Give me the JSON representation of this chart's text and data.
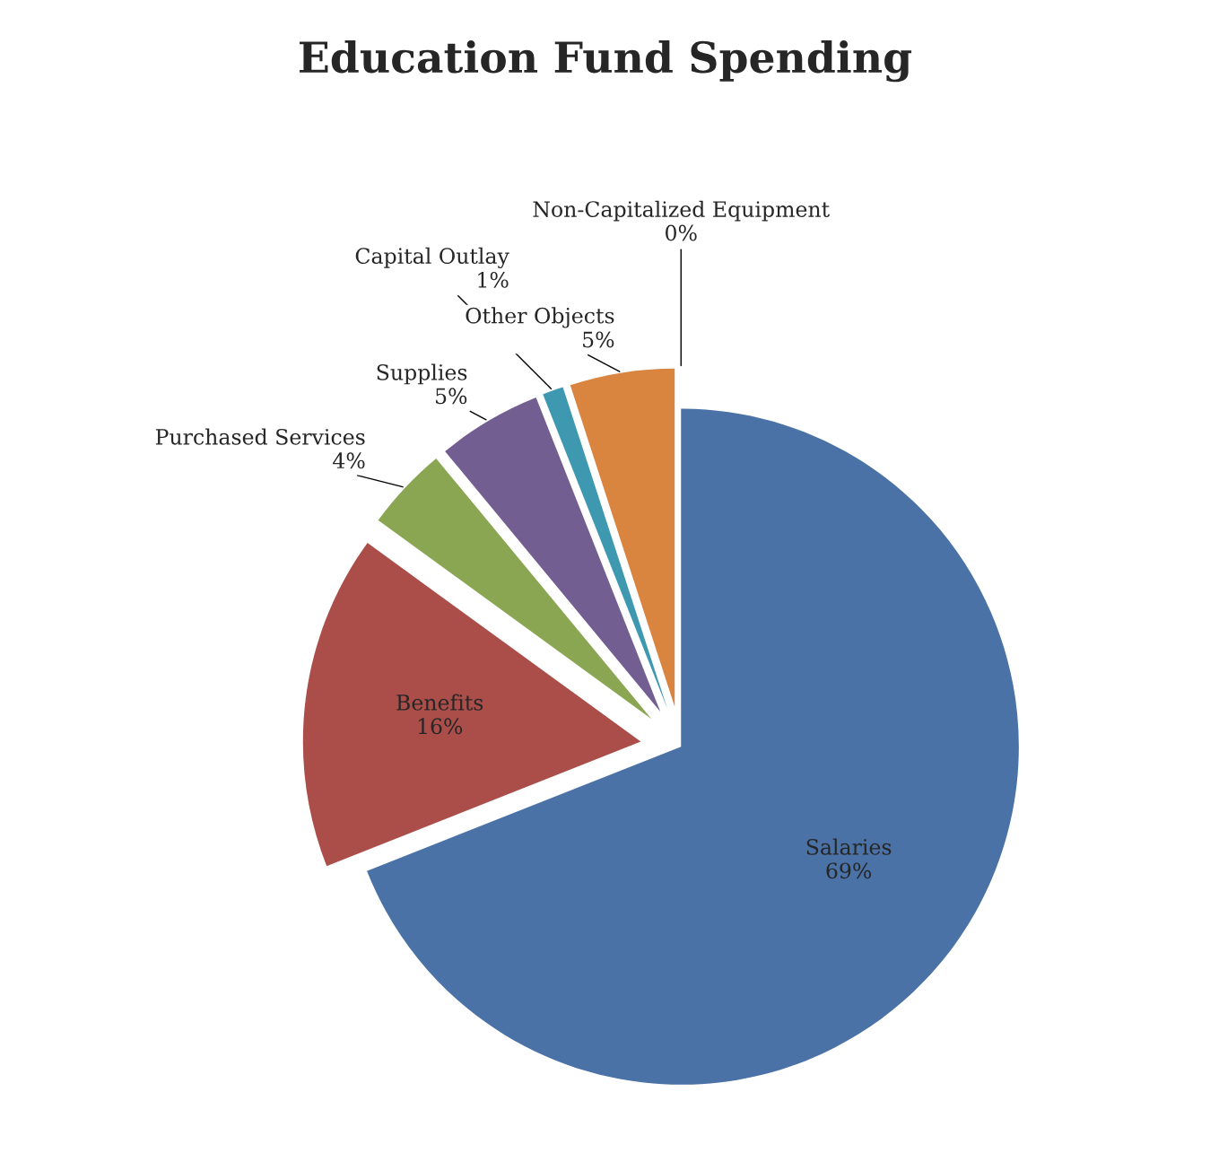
{
  "chart_data": {
    "type": "pie",
    "title": "Education Fund Spending",
    "categories": [
      "Salaries",
      "Benefits",
      "Purchased Services",
      "Supplies",
      "Capital Outlay",
      "Other Objects",
      "Non-Capitalized Equipment"
    ],
    "values": [
      69,
      16,
      4,
      5,
      1,
      5,
      0
    ],
    "value_labels": [
      "69%",
      "16%",
      "4%",
      "5%",
      "1%",
      "5%",
      "0%"
    ],
    "colors": [
      "#4a72a6",
      "#ab4e4a",
      "#8aa653",
      "#735e91",
      "#3e98b0",
      "#d9843f",
      "#9bbb59"
    ]
  }
}
